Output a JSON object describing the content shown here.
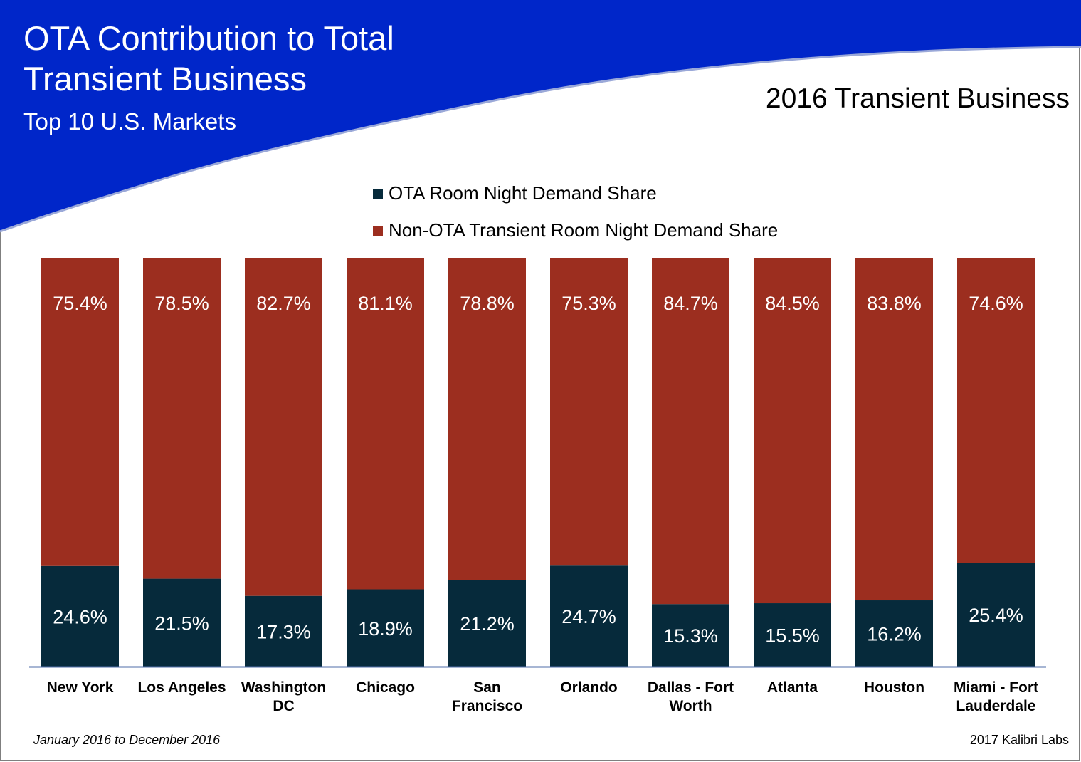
{
  "header": {
    "title_line1": "OTA Contribution to Total",
    "title_line2": "Transient Business",
    "subtitle": "Top 10 U.S. Markets",
    "section_title": "2016 Transient Business"
  },
  "footer": {
    "date_range": "January 2016 to December 2016",
    "source": "2017 Kalibri Labs"
  },
  "colors": {
    "banner": "#0026c9",
    "ota": "#062a3b",
    "non_ota": "#9c2e1f",
    "axis": "#4f6ea8"
  },
  "chart_data": {
    "type": "bar",
    "stacked": true,
    "percent_stacked": true,
    "title": "2016 Transient Business",
    "legend_position": "top",
    "categories": [
      [
        "New York"
      ],
      [
        "Los Angeles"
      ],
      [
        "Washington",
        "DC"
      ],
      [
        "Chicago"
      ],
      [
        "San",
        "Francisco"
      ],
      [
        "Orlando"
      ],
      [
        "Dallas - Fort",
        "Worth"
      ],
      [
        "Atlanta"
      ],
      [
        "Houston"
      ],
      [
        "Miami - Fort",
        "Lauderdale"
      ]
    ],
    "series": [
      {
        "name": "OTA Room Night Demand Share",
        "values": [
          24.6,
          21.5,
          17.3,
          18.9,
          21.2,
          24.7,
          15.3,
          15.5,
          16.2,
          25.4
        ],
        "labels": [
          "24.6%",
          "21.5%",
          "17.3%",
          "18.9%",
          "21.2%",
          "24.7%",
          "15.3%",
          "15.5%",
          "16.2%",
          "25.4%"
        ]
      },
      {
        "name": "Non-OTA Transient Room Night Demand Share",
        "values": [
          75.4,
          78.5,
          82.7,
          81.1,
          78.8,
          75.3,
          84.7,
          84.5,
          83.8,
          74.6
        ],
        "labels": [
          "75.4%",
          "78.5%",
          "82.7%",
          "81.1%",
          "78.8%",
          "75.3%",
          "84.7%",
          "84.5%",
          "83.8%",
          "74.6%"
        ]
      }
    ],
    "ylim": [
      0,
      100
    ],
    "grid": false
  }
}
